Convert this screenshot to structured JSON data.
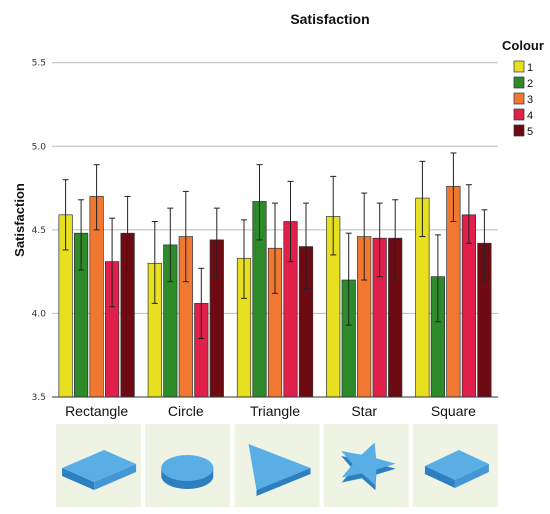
{
  "chart_data": {
    "type": "bar",
    "title": "Satisfaction",
    "ylabel": "Satisfaction",
    "xlabel": "",
    "ylim": [
      3.5,
      5.6
    ],
    "yticks": [
      "3.5",
      "4.0",
      "4.5",
      "5.0",
      "5.5"
    ],
    "grid": true,
    "legend": {
      "title": "Colour",
      "placement": "right"
    },
    "categories": [
      "Rectangle",
      "Circle",
      "Triangle",
      "Star",
      "Square"
    ],
    "series": [
      {
        "name": "1",
        "color": "#e6e020",
        "values": [
          4.59,
          4.3,
          4.33,
          4.58,
          4.69
        ],
        "err_low": [
          4.38,
          4.06,
          4.09,
          4.35,
          4.46
        ],
        "err_high": [
          4.8,
          4.55,
          4.56,
          4.82,
          4.91
        ]
      },
      {
        "name": "2",
        "color": "#2e8b2a",
        "values": [
          4.48,
          4.41,
          4.67,
          4.2,
          4.22
        ],
        "err_low": [
          4.26,
          4.19,
          4.44,
          3.93,
          3.95
        ],
        "err_high": [
          4.68,
          4.63,
          4.89,
          4.48,
          4.47
        ]
      },
      {
        "name": "3",
        "color": "#f07830",
        "values": [
          4.7,
          4.46,
          4.39,
          4.46,
          4.76
        ],
        "err_low": [
          4.5,
          4.19,
          4.12,
          4.2,
          4.55
        ],
        "err_high": [
          4.89,
          4.73,
          4.66,
          4.72,
          4.96
        ]
      },
      {
        "name": "4",
        "color": "#e0204a",
        "values": [
          4.31,
          4.06,
          4.55,
          4.45,
          4.59
        ],
        "err_low": [
          4.04,
          3.85,
          4.31,
          4.22,
          4.42
        ],
        "err_high": [
          4.57,
          4.27,
          4.79,
          4.66,
          4.77
        ]
      },
      {
        "name": "5",
        "color": "#6e0a12",
        "values": [
          4.48,
          4.44,
          4.4,
          4.45,
          4.42
        ],
        "err_low": [
          4.25,
          4.22,
          4.15,
          4.21,
          4.2
        ],
        "err_high": [
          4.7,
          4.63,
          4.66,
          4.68,
          4.62
        ]
      }
    ],
    "shape_icons": [
      "rectangle-shape-icon",
      "circle-shape-icon",
      "triangle-shape-icon",
      "star-shape-icon",
      "square-shape-icon"
    ],
    "colors": {
      "grid": "#bbbbbb",
      "icon_bg": "#eef3e4",
      "shape": "#5aaee6",
      "shape_dark": "#2e7fc0",
      "bar_edge": "#333333"
    }
  }
}
